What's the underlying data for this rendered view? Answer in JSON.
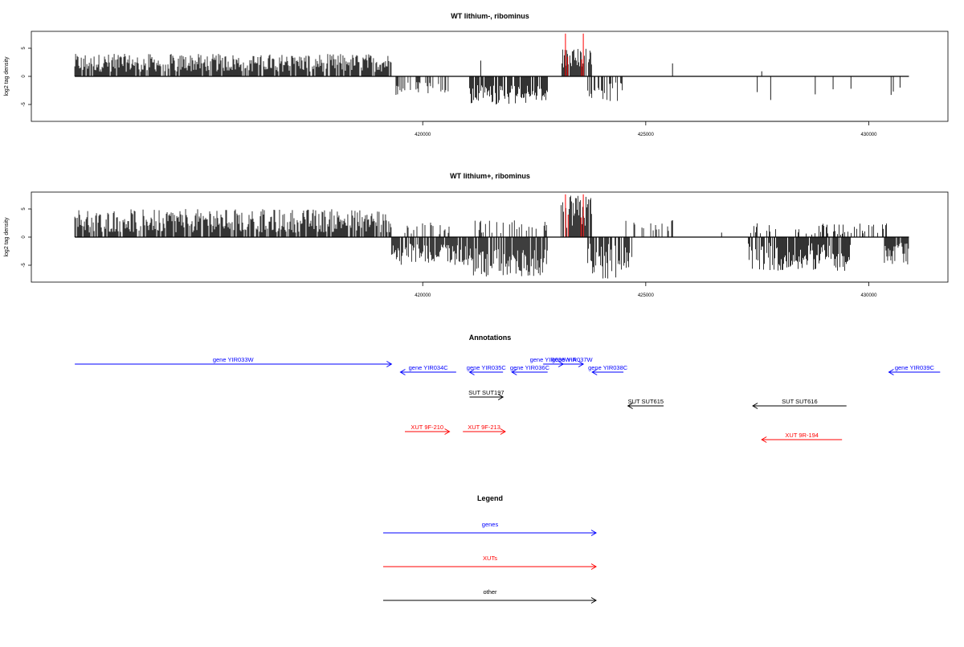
{
  "chart_data": [
    {
      "type": "bar",
      "title": "WT lithium-, ribominus",
      "ylabel": "log2 tag density",
      "xlim": [
        411800,
        431500
      ],
      "ylim": [
        -8,
        8
      ],
      "yticks": [
        -5,
        0,
        5
      ],
      "xticks": [
        420000,
        425000,
        430000
      ],
      "colors": {
        "signal": "#000000",
        "highlight": "#ff0000"
      },
      "segments": [
        {
          "kind": "pos",
          "start": 412200,
          "end": 419300,
          "min": 0.8,
          "max": 4.0
        },
        {
          "kind": "neg",
          "start": 419400,
          "end": 420600,
          "min": 1.0,
          "max": 3.5,
          "density": 0.4
        },
        {
          "kind": "neg",
          "start": 421050,
          "end": 422800,
          "min": 1.5,
          "max": 5.0
        },
        {
          "kind": "pos",
          "start": 423100,
          "end": 423800,
          "min": 1.5,
          "max": 5.0
        },
        {
          "kind": "neg",
          "start": 423700,
          "end": 424500,
          "min": 1.0,
          "max": 4.5,
          "density": 0.6
        }
      ],
      "isolated": [
        {
          "x": 421300,
          "y": 2.8
        },
        {
          "x": 425600,
          "y": 2.3
        },
        {
          "x": 427500,
          "y": -2.8
        },
        {
          "x": 427600,
          "y": 0.9
        },
        {
          "x": 427800,
          "y": -4.2
        },
        {
          "x": 428800,
          "y": -3.2
        },
        {
          "x": 429200,
          "y": -2.3
        },
        {
          "x": 429600,
          "y": -2.2
        },
        {
          "x": 430500,
          "y": -3.3
        },
        {
          "x": 430550,
          "y": -2.7
        },
        {
          "x": 430700,
          "y": -2.0
        }
      ],
      "highlights": [
        {
          "x": 423200,
          "y": 7.6
        },
        {
          "x": 423250,
          "y": 3.5
        },
        {
          "x": 423600,
          "y": 7.6
        },
        {
          "x": 423560,
          "y": 3.0
        }
      ]
    },
    {
      "type": "bar",
      "title": "WT lithium+, ribominus",
      "ylabel": "log2 tag density",
      "xlim": [
        411800,
        431500
      ],
      "ylim": [
        -8,
        8
      ],
      "yticks": [
        -5,
        0,
        5
      ],
      "xticks": [
        420000,
        425000,
        430000
      ],
      "colors": {
        "signal": "#000000",
        "highlight": "#ff0000"
      },
      "segments": [
        {
          "kind": "pos",
          "start": 412200,
          "end": 419300,
          "min": 0.8,
          "max": 5.0
        },
        {
          "kind": "neg",
          "start": 419300,
          "end": 421100,
          "min": 1.0,
          "max": 5.0
        },
        {
          "kind": "pos",
          "start": 419600,
          "end": 420600,
          "min": 0.5,
          "max": 3.5,
          "density": 0.4
        },
        {
          "kind": "neg",
          "start": 421100,
          "end": 422800,
          "min": 2.0,
          "max": 7.0
        },
        {
          "kind": "pos",
          "start": 421100,
          "end": 422900,
          "min": 0.5,
          "max": 3.0,
          "density": 0.3
        },
        {
          "kind": "pos",
          "start": 423100,
          "end": 423800,
          "min": 1.5,
          "max": 7.5
        },
        {
          "kind": "neg",
          "start": 423700,
          "end": 424700,
          "min": 1.0,
          "max": 7.5
        },
        {
          "kind": "pos",
          "start": 424500,
          "end": 425600,
          "min": 0.4,
          "max": 3.0,
          "density": 0.25
        },
        {
          "kind": "neg",
          "start": 427300,
          "end": 429600,
          "min": 1.0,
          "max": 6.0
        },
        {
          "kind": "pos",
          "start": 427300,
          "end": 430400,
          "min": 0.4,
          "max": 2.5,
          "density": 0.3
        },
        {
          "kind": "neg",
          "start": 430350,
          "end": 430900,
          "min": 1.0,
          "max": 5.0
        }
      ],
      "isolated": [
        {
          "x": 426700,
          "y": 0.8
        },
        {
          "x": 425600,
          "y": 3.0
        }
      ],
      "highlights": [
        {
          "x": 423200,
          "y": 7.6
        },
        {
          "x": 423260,
          "y": 4.0
        },
        {
          "x": 423600,
          "y": 7.6
        },
        {
          "x": 423550,
          "y": 3.5
        }
      ]
    }
  ],
  "annotations": {
    "title": "Annotations",
    "features": [
      {
        "label": "gene YIR033W",
        "start": 412200,
        "end": 419300,
        "direction": "right",
        "row": 1,
        "type": "gene"
      },
      {
        "label": "gene YIR034C",
        "start": 419500,
        "end": 420750,
        "direction": "left",
        "row": 2,
        "type": "gene"
      },
      {
        "label": "gene YIR035C",
        "start": 421050,
        "end": 421800,
        "direction": "left",
        "row": 2,
        "type": "gene"
      },
      {
        "label": "gene YIR036C",
        "start": 422000,
        "end": 422800,
        "direction": "left",
        "row": 2,
        "type": "gene"
      },
      {
        "label": "gene YIR036W-A",
        "start": 422700,
        "end": 423150,
        "direction": "right",
        "row": 1,
        "type": "gene"
      },
      {
        "label": "gene YIR037W",
        "start": 423100,
        "end": 423600,
        "direction": "right",
        "row": 1,
        "type": "gene"
      },
      {
        "label": "gene YIR038C",
        "start": 423800,
        "end": 424500,
        "direction": "left",
        "row": 2,
        "type": "gene"
      },
      {
        "label": "gene YIR039C",
        "start": 430450,
        "end": 431600,
        "direction": "left",
        "row": 2,
        "type": "gene"
      },
      {
        "label": "SUT SUT197",
        "start": 421050,
        "end": 421800,
        "direction": "right",
        "row": 3,
        "type": "other"
      },
      {
        "label": "SUT SUT615",
        "start": 424600,
        "end": 425400,
        "direction": "left",
        "row": 4,
        "type": "other"
      },
      {
        "label": "SUT SUT616",
        "start": 427400,
        "end": 429500,
        "direction": "left",
        "row": 4,
        "type": "other"
      },
      {
        "label": "XUT 9F-210",
        "start": 419600,
        "end": 420600,
        "direction": "right",
        "row": 5,
        "type": "xut"
      },
      {
        "label": "XUT 9F-213",
        "start": 420900,
        "end": 421850,
        "direction": "right",
        "row": 5,
        "type": "xut"
      },
      {
        "label": "XUT 9R-194",
        "start": 427600,
        "end": 429400,
        "direction": "left",
        "row": 6,
        "type": "xut"
      }
    ]
  },
  "legend": {
    "title": "Legend",
    "items": [
      {
        "label": "genes",
        "type": "gene"
      },
      {
        "label": "XUTs",
        "type": "xut"
      },
      {
        "label": "other",
        "type": "other"
      }
    ]
  },
  "colors": {
    "gene": "#0000ff",
    "xut": "#ff0000",
    "other": "#000000"
  }
}
